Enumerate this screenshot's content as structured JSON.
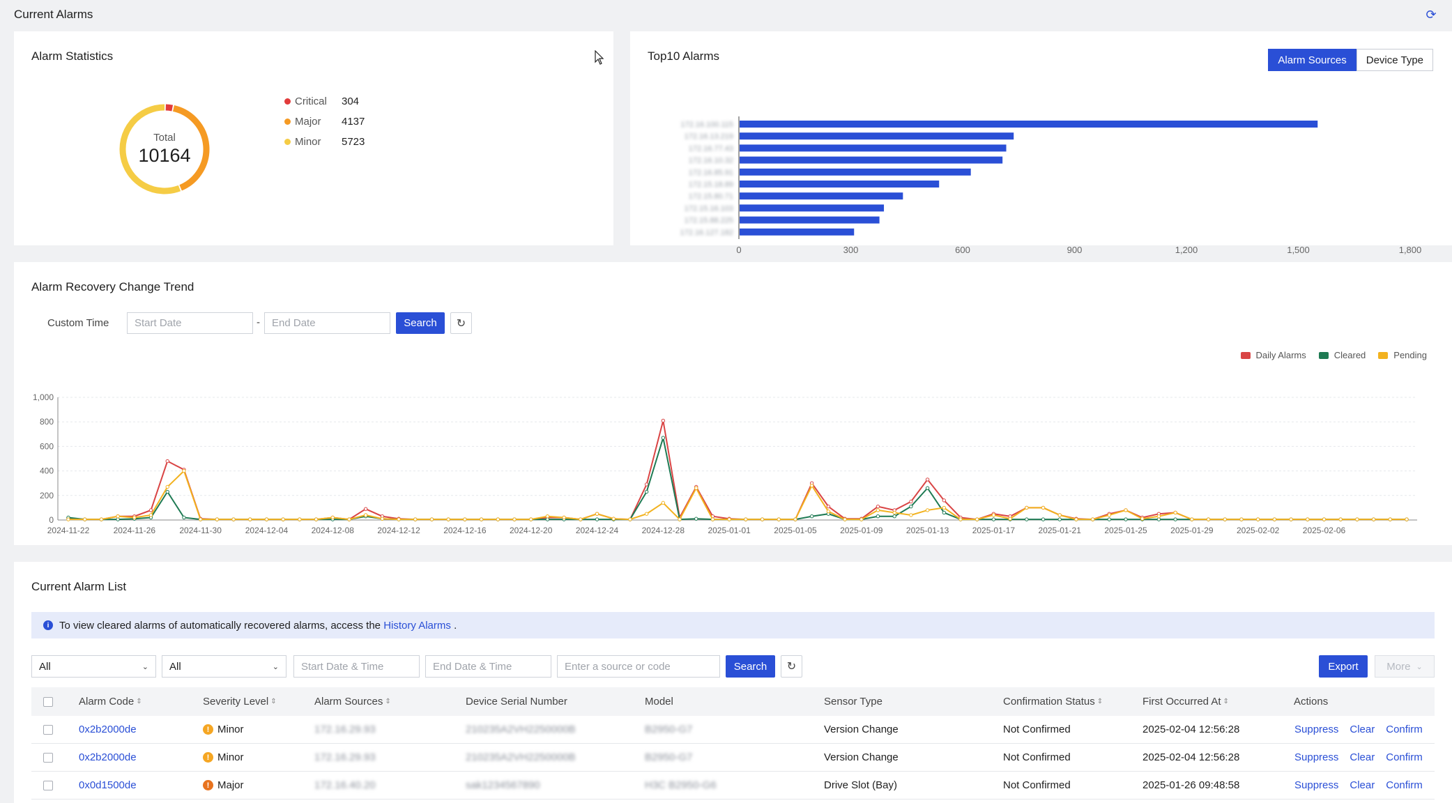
{
  "header": {
    "title": "Current Alarms",
    "refresh_icon": "refresh-icon"
  },
  "stats": {
    "title": "Alarm Statistics",
    "total_label": "Total",
    "total_value": "10164",
    "items": [
      {
        "name": "Critical",
        "value": "304",
        "color": "#e23b3b"
      },
      {
        "name": "Major",
        "value": "4137",
        "color": "#f59a23"
      },
      {
        "name": "Minor",
        "value": "5723",
        "color": "#f5cc45"
      }
    ]
  },
  "top10": {
    "title": "Top10 Alarms",
    "tabs": [
      {
        "label": "Alarm Sources",
        "active": true
      },
      {
        "label": "Device Type",
        "active": false
      }
    ],
    "chart_data": {
      "type": "bar",
      "orientation": "horizontal",
      "categories": [
        "172.16.100.115",
        "172.16.13.219",
        "172.16.77.43",
        "172.16.10.32",
        "172.16.85.91",
        "172.15.18.89",
        "172.15.80.71",
        "172.15.16.103",
        "172.15.88.225",
        "172.16.127.182"
      ],
      "values": [
        1550,
        735,
        715,
        705,
        620,
        535,
        438,
        387,
        375,
        307
      ],
      "xlim": [
        0,
        1800
      ],
      "xticks": [
        "0",
        "300",
        "600",
        "900",
        "1,200",
        "1,500",
        "1,800"
      ],
      "color": "#2a4fd6"
    }
  },
  "trend": {
    "title": "Alarm Recovery Change Trend",
    "filter_label": "Custom Time",
    "start_placeholder": "Start Date",
    "end_placeholder": "End Date",
    "separator": "-",
    "search_label": "Search",
    "chart_data": {
      "type": "line",
      "ylim": [
        0,
        1000
      ],
      "yticks": [
        "0",
        "200",
        "400",
        "600",
        "800",
        "1,000"
      ],
      "xticks": [
        "2024-11-22",
        "2024-11-26",
        "2024-11-30",
        "2024-12-04",
        "2024-12-08",
        "2024-12-12",
        "2024-12-16",
        "2024-12-20",
        "2024-12-24",
        "2024-12-28",
        "2025-01-01",
        "2025-01-05",
        "2025-01-09",
        "2025-01-13",
        "2025-01-17",
        "2025-01-21",
        "2025-01-25",
        "2025-01-29",
        "2025-02-02",
        "2025-02-06"
      ],
      "start_date": "2024-11-22",
      "series": [
        {
          "name": "Daily Alarms",
          "color": "#d94444",
          "values": [
            15,
            5,
            5,
            30,
            30,
            80,
            480,
            410,
            10,
            5,
            5,
            5,
            5,
            5,
            5,
            5,
            20,
            5,
            90,
            30,
            10,
            5,
            5,
            5,
            5,
            5,
            5,
            5,
            5,
            20,
            20,
            5,
            50,
            10,
            5,
            290,
            810,
            20,
            270,
            30,
            10,
            5,
            5,
            5,
            5,
            300,
            110,
            10,
            10,
            110,
            80,
            150,
            330,
            160,
            20,
            5,
            50,
            30,
            100,
            100,
            40,
            10,
            5,
            50,
            80,
            20,
            50,
            60,
            5,
            5,
            5,
            5,
            5,
            5,
            5,
            5,
            5,
            5,
            5,
            5,
            5,
            5
          ]
        },
        {
          "name": "Cleared",
          "color": "#1e7a53",
          "values": [
            20,
            5,
            5,
            5,
            10,
            20,
            230,
            20,
            5,
            5,
            5,
            5,
            5,
            5,
            5,
            5,
            5,
            5,
            30,
            10,
            5,
            5,
            5,
            5,
            5,
            5,
            5,
            5,
            5,
            5,
            5,
            5,
            5,
            5,
            5,
            230,
            670,
            5,
            10,
            5,
            5,
            5,
            5,
            5,
            5,
            30,
            50,
            5,
            5,
            30,
            30,
            110,
            260,
            60,
            5,
            5,
            5,
            5,
            5,
            5,
            5,
            5,
            5,
            5,
            5,
            5,
            5,
            5,
            5,
            5,
            5,
            5,
            5,
            5,
            5,
            5,
            5,
            5,
            5,
            5,
            5,
            5
          ]
        },
        {
          "name": "Pending",
          "color": "#f2b21f",
          "values": [
            5,
            5,
            5,
            30,
            20,
            40,
            270,
            400,
            5,
            5,
            5,
            5,
            5,
            5,
            5,
            5,
            20,
            5,
            40,
            10,
            5,
            5,
            5,
            5,
            5,
            5,
            5,
            5,
            5,
            30,
            20,
            5,
            50,
            10,
            5,
            50,
            140,
            5,
            260,
            5,
            5,
            5,
            5,
            5,
            5,
            280,
            70,
            5,
            5,
            80,
            60,
            40,
            80,
            100,
            5,
            5,
            40,
            10,
            100,
            100,
            40,
            5,
            5,
            40,
            80,
            10,
            30,
            60,
            5,
            5,
            5,
            5,
            5,
            5,
            5,
            5,
            5,
            5,
            5,
            5,
            5,
            5
          ]
        }
      ]
    }
  },
  "list": {
    "title": "Current Alarm List",
    "info_text": "To view cleared alarms of automatically recovered alarms, access the",
    "info_link": "History Alarms",
    "info_suffix": ".",
    "filter_severity": "All",
    "filter_status": "All",
    "start_placeholder": "Start Date & Time",
    "end_placeholder": "End Date & Time",
    "source_placeholder": "Enter a source or code",
    "search_label": "Search",
    "export_label": "Export",
    "more_label": "More",
    "columns": [
      "Alarm Code",
      "Severity Level",
      "Alarm Sources",
      "Device Serial Number",
      "Model",
      "Sensor Type",
      "Confirmation Status",
      "First Occurred At",
      "Actions"
    ],
    "actions": [
      "Suppress",
      "Clear",
      "Confirm"
    ],
    "rows": [
      {
        "code": "0x2b2000de",
        "severity": "Minor",
        "severity_color": "#f5a623",
        "source": "172.16.29.93",
        "serial": "210235A2VH2250000B",
        "model": "B2950-G7",
        "sensor": "Version Change",
        "status": "Not Confirmed",
        "time": "2025-02-04 12:56:28"
      },
      {
        "code": "0x2b2000de",
        "severity": "Minor",
        "severity_color": "#f5a623",
        "source": "172.16.29.93",
        "serial": "210235A2VH2250000B",
        "model": "B2950-G7",
        "sensor": "Version Change",
        "status": "Not Confirmed",
        "time": "2025-02-04 12:56:28"
      },
      {
        "code": "0x0d1500de",
        "severity": "Major",
        "severity_color": "#e8731f",
        "source": "172.16.40.20",
        "serial": "sak1234567890",
        "model": "H3C B2950-G6",
        "sensor": "Drive Slot (Bay)",
        "status": "Not Confirmed",
        "time": "2025-01-26 09:48:58"
      }
    ]
  }
}
